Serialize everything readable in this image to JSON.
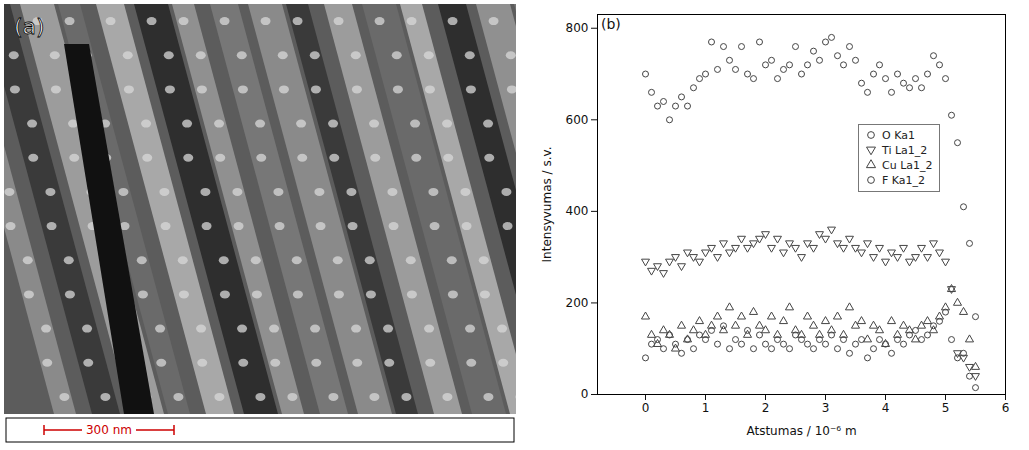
{
  "image": {
    "label": "(a)",
    "scale_bar": "300 nm"
  },
  "chart_data": {
    "type": "scatter",
    "label": "(b)",
    "x_label": "Atstumas / 10⁻⁶ m",
    "y_label": "Intensyvumas / s.v.",
    "xlim": [
      -0.8,
      6
    ],
    "xticks": [
      0,
      1,
      2,
      3,
      4,
      5,
      6
    ],
    "ylim": [
      0,
      830
    ],
    "yticks": [
      0,
      200,
      400,
      600,
      800
    ],
    "grid": false,
    "legend": "upper right",
    "x": [
      0,
      0.1,
      0.2,
      0.3,
      0.4,
      0.5,
      0.6,
      0.7,
      0.8,
      0.9,
      1.0,
      1.1,
      1.2,
      1.3,
      1.4,
      1.5,
      1.6,
      1.7,
      1.8,
      1.9,
      2.0,
      2.1,
      2.2,
      2.3,
      2.4,
      2.5,
      2.6,
      2.7,
      2.8,
      2.9,
      3.0,
      3.1,
      3.2,
      3.3,
      3.4,
      3.5,
      3.6,
      3.7,
      3.8,
      3.9,
      4.0,
      4.1,
      4.2,
      4.3,
      4.4,
      4.5,
      4.6,
      4.7,
      4.8,
      4.9,
      5.0,
      5.1,
      5.2,
      5.3,
      5.4,
      5.5
    ],
    "series": [
      {
        "name": "O Ka1",
        "color": "#444444",
        "marker": "circle",
        "values": [
          700,
          660,
          630,
          640,
          600,
          630,
          650,
          630,
          670,
          690,
          700,
          770,
          710,
          760,
          730,
          710,
          760,
          700,
          690,
          770,
          720,
          730,
          690,
          710,
          720,
          760,
          700,
          720,
          750,
          730,
          770,
          780,
          740,
          720,
          760,
          730,
          680,
          660,
          700,
          720,
          690,
          660,
          700,
          680,
          670,
          690,
          670,
          700,
          740,
          720,
          690,
          610,
          550,
          410,
          330,
          170
        ]
      },
      {
        "name": "Ti La1_2",
        "color": "#444444",
        "marker": "triangle-down",
        "values": [
          290,
          270,
          280,
          265,
          290,
          300,
          280,
          310,
          300,
          290,
          310,
          320,
          300,
          330,
          310,
          320,
          340,
          320,
          330,
          340,
          350,
          320,
          340,
          310,
          330,
          320,
          300,
          330,
          320,
          350,
          340,
          360,
          330,
          320,
          340,
          320,
          310,
          330,
          300,
          320,
          290,
          310,
          300,
          320,
          290,
          300,
          320,
          300,
          330,
          310,
          290,
          230,
          90,
          80,
          60,
          40
        ]
      },
      {
        "name": "Cu La1_2",
        "color": "#444444",
        "marker": "triangle",
        "values": [
          170,
          130,
          110,
          140,
          130,
          100,
          150,
          120,
          140,
          160,
          130,
          150,
          170,
          140,
          190,
          150,
          170,
          130,
          180,
          150,
          140,
          170,
          130,
          160,
          190,
          140,
          130,
          170,
          150,
          130,
          160,
          140,
          170,
          130,
          190,
          150,
          160,
          120,
          150,
          140,
          110,
          160,
          130,
          150,
          140,
          120,
          150,
          160,
          140,
          170,
          190,
          230,
          200,
          180,
          120,
          60
        ]
      },
      {
        "name": "F Ka1_2",
        "color": "#444444",
        "marker": "circle",
        "values": [
          80,
          110,
          120,
          100,
          130,
          110,
          90,
          120,
          100,
          130,
          120,
          140,
          110,
          150,
          100,
          120,
          110,
          140,
          100,
          130,
          110,
          100,
          120,
          110,
          100,
          130,
          120,
          110,
          100,
          120,
          110,
          130,
          100,
          120,
          90,
          110,
          120,
          80,
          100,
          120,
          110,
          90,
          120,
          110,
          130,
          140,
          120,
          130,
          150,
          160,
          180,
          120,
          80,
          90,
          40,
          15
        ]
      }
    ]
  }
}
